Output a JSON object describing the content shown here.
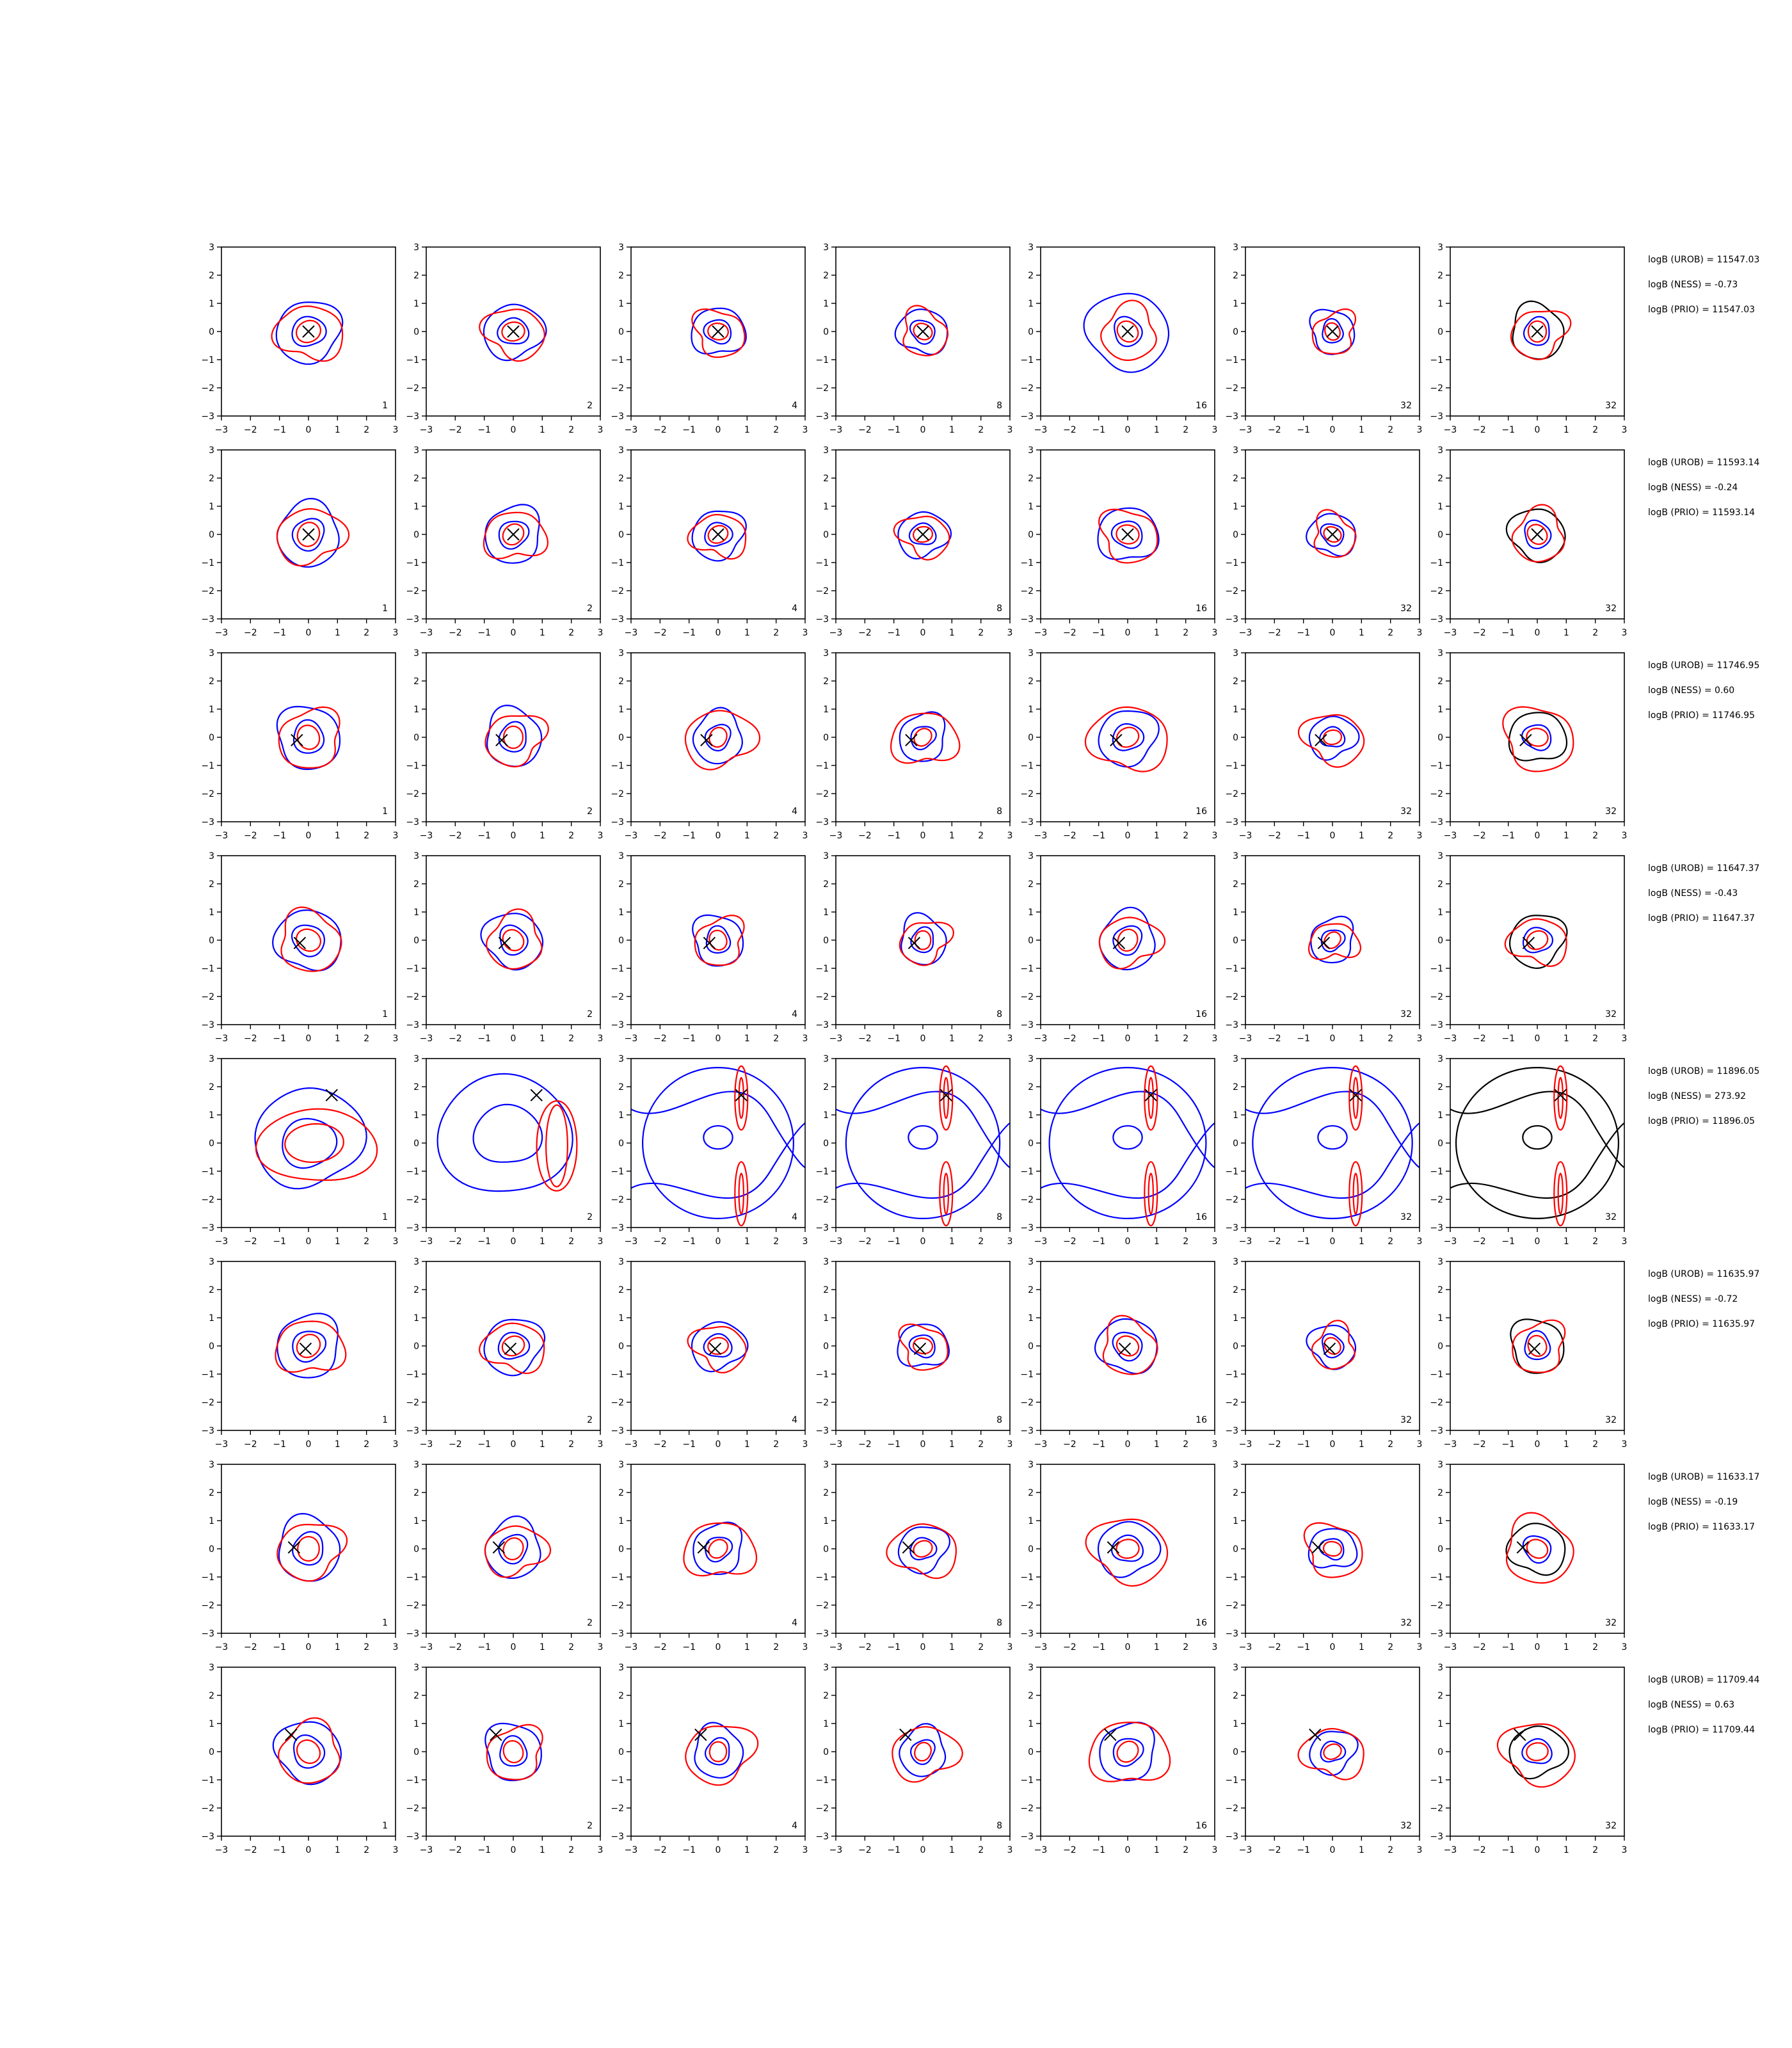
{
  "chart_data": {
    "type": "contour",
    "grid": "7 columns x 8 rows of small contour panels",
    "axes": {
      "xlim": [
        -3,
        3
      ],
      "ylim": [
        -3,
        3
      ],
      "xticks": [
        "−3",
        "−2",
        "−1",
        "0",
        "1",
        "2",
        "3"
      ],
      "yticks": [
        "3",
        "2",
        "1",
        "0",
        "−1",
        "−2",
        "−3"
      ]
    },
    "column_labels": [
      "1",
      "2",
      "4",
      "8",
      "16",
      "32",
      "32"
    ],
    "series_colors": {
      "blue": "#0000ff",
      "red": "#ff0000",
      "black": "#000000"
    },
    "rows": [
      {
        "marker": [
          0,
          0
        ],
        "annotations": [
          "logB (UROB) = 11547.03",
          "logB (NESS) = -0.73",
          "logB (PRIO) = 11547.03"
        ]
      },
      {
        "marker": [
          0,
          0
        ],
        "annotations": [
          "logB (UROB) = 11593.14",
          "logB (NESS) = -0.24",
          "logB (PRIO) = 11593.14"
        ]
      },
      {
        "marker": [
          -0.4,
          -0.1
        ],
        "annotations": [
          "logB (UROB) = 11746.95",
          "logB (NESS) = 0.60",
          "logB (PRIO) = 11746.95"
        ]
      },
      {
        "marker": [
          -0.3,
          -0.1
        ],
        "annotations": [
          "logB (UROB) = 11647.37",
          "logB (NESS) = -0.43",
          "logB (PRIO) = 11647.37"
        ]
      },
      {
        "marker": [
          0.8,
          1.7
        ],
        "annotations": [
          "logB (UROB) = 11896.05",
          "logB (NESS) = 273.92",
          "logB (PRIO) = 11896.05"
        ]
      },
      {
        "marker": [
          -0.1,
          -0.1
        ],
        "annotations": [
          "logB (UROB) = 11635.97",
          "logB (NESS) = -0.72",
          "logB (PRIO) = 11635.97"
        ]
      },
      {
        "marker": [
          -0.5,
          0.05
        ],
        "annotations": [
          "logB (UROB) = 11633.17",
          "logB (NESS) = -0.19",
          "logB (PRIO) = 11633.17"
        ]
      },
      {
        "marker": [
          -0.6,
          0.6
        ],
        "annotations": [
          "logB (UROB) = 11709.44",
          "logB (NESS) = 0.63",
          "logB (PRIO) = 11709.44"
        ]
      }
    ]
  }
}
